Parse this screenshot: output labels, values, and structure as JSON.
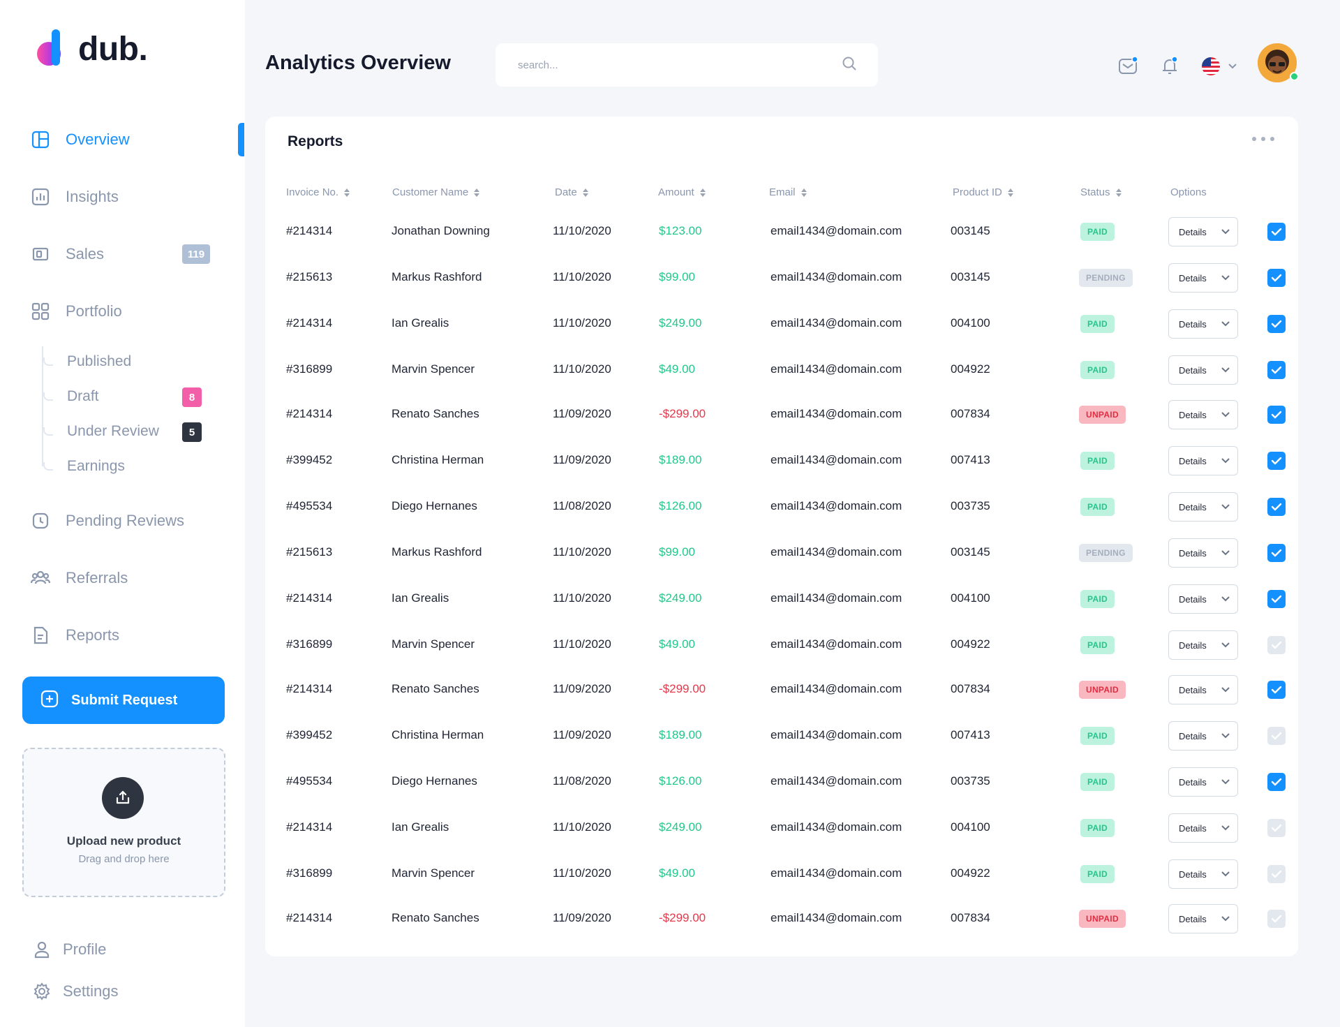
{
  "app": {
    "logo_text": "dub."
  },
  "header": {
    "title": "Analytics Overview",
    "search_placeholder": "search..."
  },
  "sidebar": {
    "nav": [
      {
        "label": "Overview",
        "icon": "layout-icon",
        "active": true
      },
      {
        "label": "Insights",
        "icon": "bar-chart-icon"
      },
      {
        "label": "Sales",
        "icon": "wallet-icon",
        "badge": "119"
      },
      {
        "label": "Portfolio",
        "icon": "grid-icon"
      }
    ],
    "portfolio_sub": [
      {
        "label": "Published"
      },
      {
        "label": "Draft",
        "badge": "8"
      },
      {
        "label": "Under Review",
        "badge": "5"
      },
      {
        "label": "Earnings"
      }
    ],
    "nav2": [
      {
        "label": "Pending Reviews",
        "icon": "clock-icon"
      },
      {
        "label": "Referrals",
        "icon": "users-icon"
      },
      {
        "label": "Reports",
        "icon": "document-icon"
      }
    ],
    "submit_label": "Submit Request",
    "upload": {
      "title": "Upload new product",
      "subtitle": "Drag and drop here"
    },
    "footer": [
      {
        "label": "Profile",
        "icon": "user-icon"
      },
      {
        "label": "Settings",
        "icon": "gear-icon"
      }
    ]
  },
  "colors": {
    "accent": "#1590FF",
    "paid": "#28C48A",
    "unpaid": "#E12E42",
    "pending": "#A4AEBE",
    "badge_sales": "#AFC0D6",
    "badge_draft": "#F35EA9",
    "badge_review": "#2E3440"
  },
  "reports": {
    "title": "Reports",
    "columns": [
      "Invoice No.",
      "Customer Name",
      "Date",
      "Amount",
      "Email",
      "Product ID",
      "Status",
      "Options"
    ],
    "details_label": "Details",
    "rows": [
      {
        "invoice": "#214314",
        "customer": "Jonathan Downing",
        "date": "11/10/2020",
        "amount": "$123.00",
        "email": "email1434@domain.com",
        "product": "003145",
        "status": "PAID",
        "checked": true
      },
      {
        "invoice": "#215613",
        "customer": "Markus Rashford",
        "date": "11/10/2020",
        "amount": "$99.00",
        "email": "email1434@domain.com",
        "product": "003145",
        "status": "PENDING",
        "checked": true
      },
      {
        "invoice": "#214314",
        "customer": "Ian Grealis",
        "date": "11/10/2020",
        "amount": "$249.00",
        "email": "email1434@domain.com",
        "product": "004100",
        "status": "PAID",
        "checked": true
      },
      {
        "invoice": "#316899",
        "customer": "Marvin Spencer",
        "date": "11/10/2020",
        "amount": "$49.00",
        "email": "email1434@domain.com",
        "product": "004922",
        "status": "PAID",
        "checked": true
      },
      {
        "invoice": "#214314",
        "customer": "Renato Sanches",
        "date": "11/09/2020",
        "amount": "-$299.00",
        "email": "email1434@domain.com",
        "product": "007834",
        "status": "UNPAID",
        "checked": true
      },
      {
        "invoice": "#399452",
        "customer": "Christina Herman",
        "date": "11/09/2020",
        "amount": "$189.00",
        "email": "email1434@domain.com",
        "product": "007413",
        "status": "PAID",
        "checked": true
      },
      {
        "invoice": "#495534",
        "customer": "Diego Hernanes",
        "date": "11/08/2020",
        "amount": "$126.00",
        "email": "email1434@domain.com",
        "product": "003735",
        "status": "PAID",
        "checked": true
      },
      {
        "invoice": "#215613",
        "customer": "Markus Rashford",
        "date": "11/10/2020",
        "amount": "$99.00",
        "email": "email1434@domain.com",
        "product": "003145",
        "status": "PENDING",
        "checked": true
      },
      {
        "invoice": "#214314",
        "customer": "Ian Grealis",
        "date": "11/10/2020",
        "amount": "$249.00",
        "email": "email1434@domain.com",
        "product": "004100",
        "status": "PAID",
        "checked": true
      },
      {
        "invoice": "#316899",
        "customer": "Marvin Spencer",
        "date": "11/10/2020",
        "amount": "$49.00",
        "email": "email1434@domain.com",
        "product": "004922",
        "status": "PAID",
        "checked": false
      },
      {
        "invoice": "#214314",
        "customer": "Renato Sanches",
        "date": "11/09/2020",
        "amount": "-$299.00",
        "email": "email1434@domain.com",
        "product": "007834",
        "status": "UNPAID",
        "checked": true
      },
      {
        "invoice": "#399452",
        "customer": "Christina Herman",
        "date": "11/09/2020",
        "amount": "$189.00",
        "email": "email1434@domain.com",
        "product": "007413",
        "status": "PAID",
        "checked": false
      },
      {
        "invoice": "#495534",
        "customer": "Diego Hernanes",
        "date": "11/08/2020",
        "amount": "$126.00",
        "email": "email1434@domain.com",
        "product": "003735",
        "status": "PAID",
        "checked": true
      },
      {
        "invoice": "#214314",
        "customer": "Ian Grealis",
        "date": "11/10/2020",
        "amount": "$249.00",
        "email": "email1434@domain.com",
        "product": "004100",
        "status": "PAID",
        "checked": false
      },
      {
        "invoice": "#316899",
        "customer": "Marvin Spencer",
        "date": "11/10/2020",
        "amount": "$49.00",
        "email": "email1434@domain.com",
        "product": "004922",
        "status": "PAID",
        "checked": false
      },
      {
        "invoice": "#214314",
        "customer": "Renato Sanches",
        "date": "11/09/2020",
        "amount": "-$299.00",
        "email": "email1434@domain.com",
        "product": "007834",
        "status": "UNPAID",
        "checked": false
      }
    ]
  }
}
